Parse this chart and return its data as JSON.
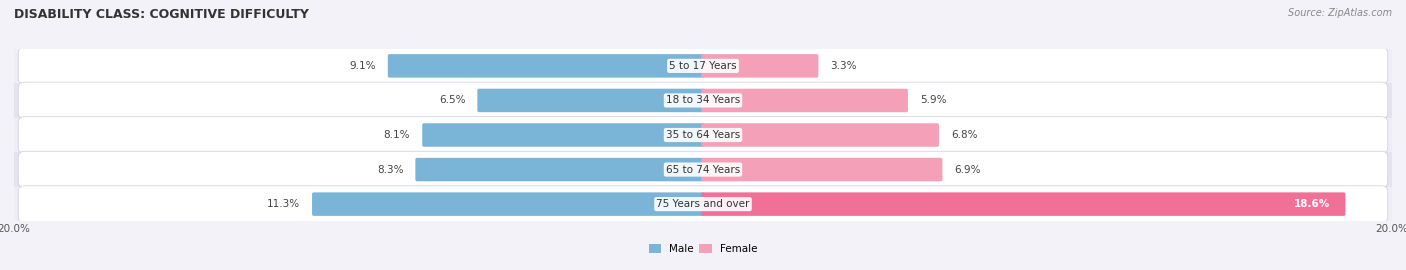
{
  "title": "DISABILITY CLASS: COGNITIVE DIFFICULTY",
  "source": "Source: ZipAtlas.com",
  "categories": [
    "5 to 17 Years",
    "18 to 34 Years",
    "35 to 64 Years",
    "65 to 74 Years",
    "75 Years and over"
  ],
  "male_values": [
    9.1,
    6.5,
    8.1,
    8.3,
    11.3
  ],
  "female_values": [
    3.3,
    5.9,
    6.8,
    6.9,
    18.6
  ],
  "max_val": 20.0,
  "male_color": "#7ab5d8",
  "female_color": "#f4a0b8",
  "female_last_color": "#f07098",
  "row_odd_color": "#eeeef4",
  "row_even_color": "#e4e4ee",
  "pill_bg_color": "#dcdce8",
  "title_fontsize": 9,
  "label_fontsize": 7.5,
  "value_fontsize": 7.5,
  "tick_fontsize": 7.5,
  "legend_fontsize": 7.5,
  "source_fontsize": 7
}
